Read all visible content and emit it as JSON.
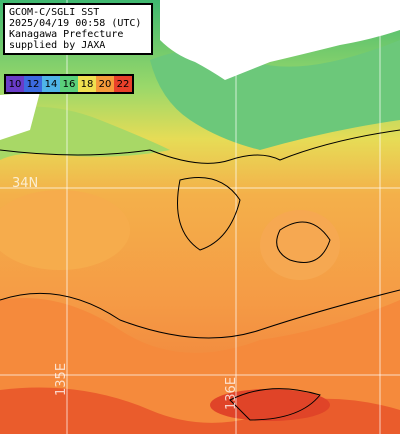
{
  "title_lines": [
    "GCOM-C/SGLI SST",
    "2025/04/19 00:58 (UTC)",
    "Kanagawa Prefecture",
    "supplied by JAXA"
  ],
  "legend": [
    {
      "label": "10",
      "color": "#6a3cc8"
    },
    {
      "label": "12",
      "color": "#3c6ae0"
    },
    {
      "label": "14",
      "color": "#4fb4e8"
    },
    {
      "label": "16",
      "color": "#5ad07a"
    },
    {
      "label": "18",
      "color": "#f0e050"
    },
    {
      "label": "20",
      "color": "#f59a3a"
    },
    {
      "label": "22",
      "color": "#e8402a"
    }
  ],
  "grid_labels": {
    "lat": "34N",
    "lon_1": "135E",
    "lon_2": "136E"
  },
  "colors": {
    "land": "#ffffff",
    "ocean_warm": "#f59a45",
    "ocean_hot": "#e8502a",
    "coastal_cool": "#7fd06a"
  }
}
